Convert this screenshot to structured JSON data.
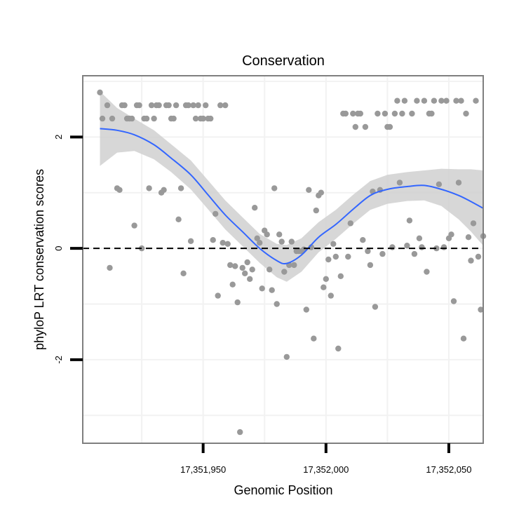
{
  "chart_data": {
    "type": "scatter",
    "title": "Conservation",
    "xlabel": "Genomic Position",
    "ylabel": "phyloP LRT conservation scores",
    "xlim": [
      17351901,
      17352064
    ],
    "ylim": [
      -3.5,
      3.1
    ],
    "xticks": [
      {
        "value": 17351950,
        "label": "17,351,950"
      },
      {
        "value": 17352000,
        "label": "17,352,000"
      },
      {
        "value": 17352050,
        "label": "17,352,050"
      }
    ],
    "yticks": [
      {
        "value": -2,
        "label": "-2"
      },
      {
        "value": 0,
        "label": "0"
      },
      {
        "value": 2,
        "label": "2"
      }
    ],
    "reference_line": {
      "y": 0,
      "style": "dashed"
    },
    "grid": true,
    "colors": {
      "points": "#999999",
      "smooth": "#3366ff",
      "ribbon": "#d0d0d0",
      "panel_border": "#7f7f7f",
      "grid": "#f2f2f2"
    },
    "points": [
      {
        "x": 17351908,
        "y": 2.8
      },
      {
        "x": 17351909,
        "y": 2.33
      },
      {
        "x": 17351911,
        "y": 2.57
      },
      {
        "x": 17351912,
        "y": -0.35
      },
      {
        "x": 17351913,
        "y": 2.33
      },
      {
        "x": 17351915,
        "y": 1.08
      },
      {
        "x": 17351916,
        "y": 1.05
      },
      {
        "x": 17351917,
        "y": 2.57
      },
      {
        "x": 17351918,
        "y": 2.57
      },
      {
        "x": 17351919,
        "y": 2.33
      },
      {
        "x": 17351920,
        "y": 2.33
      },
      {
        "x": 17351921,
        "y": 2.33
      },
      {
        "x": 17351922,
        "y": 0.41
      },
      {
        "x": 17351923,
        "y": 2.57
      },
      {
        "x": 17351924,
        "y": 2.57
      },
      {
        "x": 17351925,
        "y": 0.0
      },
      {
        "x": 17351926,
        "y": 2.33
      },
      {
        "x": 17351927,
        "y": 2.33
      },
      {
        "x": 17351928,
        "y": 1.08
      },
      {
        "x": 17351929,
        "y": 2.57
      },
      {
        "x": 17351930,
        "y": 2.33
      },
      {
        "x": 17351931,
        "y": 2.57
      },
      {
        "x": 17351932,
        "y": 2.57
      },
      {
        "x": 17351933,
        "y": 1.0
      },
      {
        "x": 17351934,
        "y": 1.05
      },
      {
        "x": 17351935,
        "y": 2.57
      },
      {
        "x": 17351936,
        "y": 2.57
      },
      {
        "x": 17351937,
        "y": 2.33
      },
      {
        "x": 17351938,
        "y": 2.33
      },
      {
        "x": 17351939,
        "y": 2.57
      },
      {
        "x": 17351940,
        "y": 0.52
      },
      {
        "x": 17351941,
        "y": 1.08
      },
      {
        "x": 17351942,
        "y": -0.45
      },
      {
        "x": 17351943,
        "y": 2.57
      },
      {
        "x": 17351944,
        "y": 2.57
      },
      {
        "x": 17351945,
        "y": 0.13
      },
      {
        "x": 17351946,
        "y": 2.57
      },
      {
        "x": 17351947,
        "y": 2.33
      },
      {
        "x": 17351948,
        "y": 2.57
      },
      {
        "x": 17351949,
        "y": 2.33
      },
      {
        "x": 17351950,
        "y": 2.33
      },
      {
        "x": 17351951,
        "y": 2.57
      },
      {
        "x": 17351952,
        "y": 2.33
      },
      {
        "x": 17351953,
        "y": 2.33
      },
      {
        "x": 17351954,
        "y": 0.15
      },
      {
        "x": 17351955,
        "y": 0.62
      },
      {
        "x": 17351956,
        "y": -0.85
      },
      {
        "x": 17351957,
        "y": 2.57
      },
      {
        "x": 17351958,
        "y": 0.1
      },
      {
        "x": 17351959,
        "y": 2.57
      },
      {
        "x": 17351960,
        "y": 0.08
      },
      {
        "x": 17351961,
        "y": -0.3
      },
      {
        "x": 17351962,
        "y": -0.65
      },
      {
        "x": 17351963,
        "y": -0.32
      },
      {
        "x": 17351964,
        "y": -0.97
      },
      {
        "x": 17351965,
        "y": -3.3
      },
      {
        "x": 17351966,
        "y": -0.35
      },
      {
        "x": 17351967,
        "y": -0.45
      },
      {
        "x": 17351968,
        "y": -0.25
      },
      {
        "x": 17351969,
        "y": -0.55
      },
      {
        "x": 17351970,
        "y": -0.38
      },
      {
        "x": 17351971,
        "y": 0.73
      },
      {
        "x": 17351972,
        "y": 0.18
      },
      {
        "x": 17351973,
        "y": 0.1
      },
      {
        "x": 17351974,
        "y": -0.72
      },
      {
        "x": 17351975,
        "y": 0.32
      },
      {
        "x": 17351976,
        "y": 0.25
      },
      {
        "x": 17351977,
        "y": -0.38
      },
      {
        "x": 17351978,
        "y": -0.75
      },
      {
        "x": 17351979,
        "y": 1.08
      },
      {
        "x": 17351980,
        "y": -1.0
      },
      {
        "x": 17351981,
        "y": 0.25
      },
      {
        "x": 17351982,
        "y": 0.12
      },
      {
        "x": 17351983,
        "y": -0.42
      },
      {
        "x": 17351984,
        "y": -1.95
      },
      {
        "x": 17351985,
        "y": -0.3
      },
      {
        "x": 17351986,
        "y": 0.12
      },
      {
        "x": 17351987,
        "y": -0.3
      },
      {
        "x": 17351988,
        "y": -0.05
      },
      {
        "x": 17351989,
        "y": -0.05
      },
      {
        "x": 17351990,
        "y": -0.05
      },
      {
        "x": 17351991,
        "y": -0.02
      },
      {
        "x": 17351992,
        "y": -1.1
      },
      {
        "x": 17351993,
        "y": 1.05
      },
      {
        "x": 17351994,
        "y": 0.02
      },
      {
        "x": 17351995,
        "y": -1.62
      },
      {
        "x": 17351996,
        "y": 0.68
      },
      {
        "x": 17351997,
        "y": 0.95
      },
      {
        "x": 17351998,
        "y": 1.0
      },
      {
        "x": 17351999,
        "y": -0.7
      },
      {
        "x": 17352000,
        "y": -0.55
      },
      {
        "x": 17352001,
        "y": -0.2
      },
      {
        "x": 17352002,
        "y": -0.85
      },
      {
        "x": 17352003,
        "y": 0.08
      },
      {
        "x": 17352004,
        "y": -0.15
      },
      {
        "x": 17352005,
        "y": -1.8
      },
      {
        "x": 17352006,
        "y": -0.5
      },
      {
        "x": 17352007,
        "y": 2.42
      },
      {
        "x": 17352008,
        "y": 2.42
      },
      {
        "x": 17352009,
        "y": -0.15
      },
      {
        "x": 17352010,
        "y": 0.45
      },
      {
        "x": 17352011,
        "y": 2.42
      },
      {
        "x": 17352012,
        "y": 2.18
      },
      {
        "x": 17352013,
        "y": 2.42
      },
      {
        "x": 17352014,
        "y": 2.42
      },
      {
        "x": 17352015,
        "y": 0.15
      },
      {
        "x": 17352016,
        "y": 2.18
      },
      {
        "x": 17352017,
        "y": -0.05
      },
      {
        "x": 17352018,
        "y": -0.3
      },
      {
        "x": 17352019,
        "y": 1.02
      },
      {
        "x": 17352020,
        "y": -1.05
      },
      {
        "x": 17352021,
        "y": 2.42
      },
      {
        "x": 17352022,
        "y": 1.05
      },
      {
        "x": 17352023,
        "y": -0.1
      },
      {
        "x": 17352024,
        "y": 2.42
      },
      {
        "x": 17352025,
        "y": 2.18
      },
      {
        "x": 17352026,
        "y": 2.18
      },
      {
        "x": 17352027,
        "y": 0.02
      },
      {
        "x": 17352028,
        "y": 2.42
      },
      {
        "x": 17352029,
        "y": 2.65
      },
      {
        "x": 17352030,
        "y": 1.18
      },
      {
        "x": 17352031,
        "y": 2.42
      },
      {
        "x": 17352032,
        "y": 2.65
      },
      {
        "x": 17352033,
        "y": 0.05
      },
      {
        "x": 17352034,
        "y": 0.5
      },
      {
        "x": 17352035,
        "y": 2.42
      },
      {
        "x": 17352036,
        "y": -0.1
      },
      {
        "x": 17352037,
        "y": 2.65
      },
      {
        "x": 17352038,
        "y": 0.18
      },
      {
        "x": 17352039,
        "y": 0.02
      },
      {
        "x": 17352040,
        "y": 2.65
      },
      {
        "x": 17352041,
        "y": -0.42
      },
      {
        "x": 17352042,
        "y": 2.42
      },
      {
        "x": 17352043,
        "y": 2.42
      },
      {
        "x": 17352044,
        "y": 2.65
      },
      {
        "x": 17352045,
        "y": 0.0
      },
      {
        "x": 17352046,
        "y": 1.15
      },
      {
        "x": 17352047,
        "y": 2.65
      },
      {
        "x": 17352048,
        "y": 0.02
      },
      {
        "x": 17352049,
        "y": 2.65
      },
      {
        "x": 17352050,
        "y": 0.18
      },
      {
        "x": 17352051,
        "y": 0.25
      },
      {
        "x": 17352052,
        "y": -0.95
      },
      {
        "x": 17352053,
        "y": 2.65
      },
      {
        "x": 17352054,
        "y": 1.18
      },
      {
        "x": 17352055,
        "y": 2.65
      },
      {
        "x": 17352056,
        "y": -1.62
      },
      {
        "x": 17352057,
        "y": 2.42
      },
      {
        "x": 17352058,
        "y": 0.2
      },
      {
        "x": 17352059,
        "y": -0.22
      },
      {
        "x": 17352060,
        "y": 0.45
      },
      {
        "x": 17352061,
        "y": 2.65
      },
      {
        "x": 17352062,
        "y": -0.15
      },
      {
        "x": 17352063,
        "y": -1.1
      },
      {
        "x": 17352064,
        "y": 0.22
      }
    ],
    "smooth": [
      {
        "x": 17351908,
        "y": 2.15,
        "lo": 1.48,
        "hi": 2.82
      },
      {
        "x": 17351915,
        "y": 2.12,
        "lo": 1.72,
        "hi": 2.52
      },
      {
        "x": 17351922,
        "y": 2.04,
        "lo": 1.75,
        "hi": 2.33
      },
      {
        "x": 17351930,
        "y": 1.86,
        "lo": 1.6,
        "hi": 2.12
      },
      {
        "x": 17351937,
        "y": 1.62,
        "lo": 1.37,
        "hi": 1.87
      },
      {
        "x": 17351945,
        "y": 1.32,
        "lo": 1.06,
        "hi": 1.58
      },
      {
        "x": 17351952,
        "y": 0.96,
        "lo": 0.7,
        "hi": 1.22
      },
      {
        "x": 17351959,
        "y": 0.6,
        "lo": 0.34,
        "hi": 0.86
      },
      {
        "x": 17351966,
        "y": 0.3,
        "lo": 0.04,
        "hi": 0.56
      },
      {
        "x": 17351973,
        "y": 0.0,
        "lo": -0.26,
        "hi": 0.26
      },
      {
        "x": 17351980,
        "y": -0.22,
        "lo": -0.52,
        "hi": 0.08
      },
      {
        "x": 17351984,
        "y": -0.27,
        "lo": -0.6,
        "hi": 0.06
      },
      {
        "x": 17351990,
        "y": -0.12,
        "lo": -0.42,
        "hi": 0.18
      },
      {
        "x": 17351997,
        "y": 0.2,
        "lo": -0.07,
        "hi": 0.47
      },
      {
        "x": 17352004,
        "y": 0.43,
        "lo": 0.17,
        "hi": 0.69
      },
      {
        "x": 17352011,
        "y": 0.7,
        "lo": 0.44,
        "hi": 0.96
      },
      {
        "x": 17352018,
        "y": 0.95,
        "lo": 0.69,
        "hi": 1.21
      },
      {
        "x": 17352025,
        "y": 1.06,
        "lo": 0.8,
        "hi": 1.32
      },
      {
        "x": 17352033,
        "y": 1.11,
        "lo": 0.85,
        "hi": 1.37
      },
      {
        "x": 17352040,
        "y": 1.13,
        "lo": 0.86,
        "hi": 1.4
      },
      {
        "x": 17352047,
        "y": 1.06,
        "lo": 0.76,
        "hi": 1.43
      },
      {
        "x": 17352054,
        "y": 0.95,
        "lo": 0.52,
        "hi": 1.42
      },
      {
        "x": 17352059,
        "y": 0.84,
        "lo": 0.3,
        "hi": 1.42
      },
      {
        "x": 17352064,
        "y": 0.72,
        "lo": 0.05,
        "hi": 1.4
      }
    ]
  }
}
